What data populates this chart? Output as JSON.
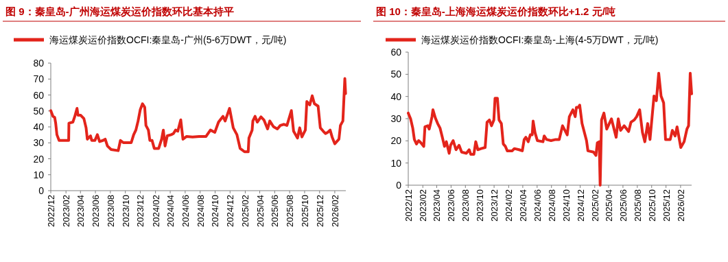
{
  "chart_data": [
    {
      "type": "line",
      "title": "图 9：秦皇岛-广州海运煤炭运价指数环比基本持平",
      "legend": "top",
      "ylim": [
        0,
        80
      ],
      "yticks": [
        0,
        10,
        20,
        30,
        40,
        50,
        60,
        70,
        80
      ],
      "xlim": [
        "2022-12-01",
        "2026-03-18"
      ],
      "xticks": [
        {
          "value": "2022-12-01",
          "label": "2022/12"
        },
        {
          "value": "2023-02-01",
          "label": "2023/02"
        },
        {
          "value": "2023-04-01",
          "label": "2023/04"
        },
        {
          "value": "2023-06-01",
          "label": "2023/06"
        },
        {
          "value": "2023-08-01",
          "label": "2023/08"
        },
        {
          "value": "2023-10-01",
          "label": "2023/10"
        },
        {
          "value": "2023-12-01",
          "label": "2023/12"
        },
        {
          "value": "2024-02-01",
          "label": "2024/02"
        },
        {
          "value": "2024-04-01",
          "label": "2024/04"
        },
        {
          "value": "2024-06-01",
          "label": "2024/06"
        },
        {
          "value": "2024-08-01",
          "label": "2024/08"
        },
        {
          "value": "2024-10-01",
          "label": "2024/10"
        },
        {
          "value": "2024-12-01",
          "label": "2024/12"
        },
        {
          "value": "2025-02-01",
          "label": "2025/02"
        },
        {
          "value": "2025-04-01",
          "label": "2025/04"
        },
        {
          "value": "2025-06-01",
          "label": "2025/06"
        },
        {
          "value": "2025-08-01",
          "label": "2025/08"
        },
        {
          "value": "2025-10-01",
          "label": "2025/10"
        },
        {
          "value": "2025-12-01",
          "label": "2025/12"
        },
        {
          "value": "2026-02-01",
          "label": "2026/02"
        }
      ],
      "series": [
        {
          "name": "海运煤炭运价指数OCFI:秦皇岛-广州(5-6万DWT，元/吨)",
          "color": "#e3241b",
          "x": [
            "2022-12-01",
            "2022-12-10",
            "2022-12-17",
            "2022-12-21",
            "2022-12-26",
            "2023-01-04",
            "2023-02-03",
            "2023-02-12",
            "2023-02-13",
            "2023-03-01",
            "2023-03-09",
            "2023-03-18",
            "2023-03-22",
            "2023-04-02",
            "2023-04-15",
            "2023-04-24",
            "2023-04-29",
            "2023-05-12",
            "2023-05-17",
            "2023-05-30",
            "2023-06-09",
            "2023-06-18",
            "2023-07-02",
            "2023-07-11",
            "2023-07-20",
            "2023-08-04",
            "2023-09-02",
            "2023-09-11",
            "2023-09-23",
            "2023-10-25",
            "2023-11-04",
            "2023-11-13",
            "2023-11-22",
            "2023-12-01",
            "2023-12-10",
            "2023-12-19",
            "2023-12-24",
            "2024-01-03",
            "2024-01-09",
            "2024-01-18",
            "2024-01-27",
            "2024-02-14",
            "2024-02-26",
            "2024-03-04",
            "2024-03-11",
            "2024-03-20",
            "2024-04-05",
            "2024-04-14",
            "2024-04-23",
            "2024-05-02",
            "2024-05-14",
            "2024-05-23",
            "2024-06-07",
            "2024-07-01",
            "2024-07-28",
            "2024-08-25",
            "2024-09-12",
            "2024-09-30",
            "2024-10-15",
            "2024-11-02",
            "2024-11-11",
            "2024-11-29",
            "2024-12-14",
            "2024-12-29",
            "2025-01-11",
            "2025-01-29",
            "2025-02-13",
            "2025-02-16",
            "2025-03-01",
            "2025-03-04",
            "2025-03-13",
            "2025-03-22",
            "2025-04-06",
            "2025-04-18",
            "2025-05-03",
            "2025-05-12",
            "2025-05-27",
            "2025-06-12",
            "2025-06-24",
            "2025-07-09",
            "2025-07-21",
            "2025-08-08",
            "2025-08-17",
            "2025-09-02",
            "2025-09-11",
            "2025-09-20",
            "2025-10-04",
            "2025-10-10",
            "2025-10-22",
            "2025-11-01",
            "2025-11-10",
            "2025-11-25",
            "2025-12-04",
            "2025-12-16",
            "2025-12-25",
            "2026-01-03",
            "2026-01-13",
            "2026-01-21",
            "2026-02-01",
            "2026-02-18",
            "2026-02-24",
            "2026-03-06",
            "2026-03-14",
            "2026-03-17"
          ],
          "values": [
            50.2,
            46.6,
            45.9,
            42.3,
            35.1,
            31.5,
            31.5,
            31.5,
            42.3,
            43,
            46.6,
            51.6,
            47.3,
            47.3,
            45.2,
            39.4,
            32.3,
            34.4,
            31.5,
            31.5,
            35.1,
            30.8,
            31.5,
            32.3,
            28,
            25.8,
            25.1,
            31.5,
            30.1,
            30.1,
            35.1,
            38,
            43.7,
            50.9,
            54.5,
            52.3,
            40.9,
            38,
            31.5,
            31.5,
            26.5,
            26.5,
            32.3,
            38,
            28,
            34.4,
            35.1,
            35.8,
            38,
            37.3,
            44.4,
            32.3,
            34,
            33.7,
            34,
            34,
            38,
            36.6,
            43,
            46.6,
            43.7,
            51.6,
            39.4,
            35.1,
            26.5,
            24.4,
            24.4,
            33,
            38,
            43.7,
            46.6,
            43,
            46.3,
            44.4,
            38.7,
            43.7,
            40.1,
            38.7,
            40.9,
            41.6,
            40.9,
            50.2,
            37.3,
            33,
            39.4,
            33.7,
            38,
            55.9,
            53.8,
            59.5,
            54.5,
            53,
            39.4,
            37.3,
            35.8,
            36.6,
            38,
            33.7,
            29.4,
            32.3,
            40.9,
            43.7,
            70.3,
            60.9
          ]
        }
      ]
    },
    {
      "type": "line",
      "title": "图 10：秦皇岛-上海海运煤炭运价指数环比+1.2 元/吨",
      "legend": "top",
      "ylim": [
        0,
        60
      ],
      "yticks": [
        0,
        10,
        20,
        30,
        40,
        50,
        60
      ],
      "xlim": [
        "2022-12-01",
        "2026-03-20"
      ],
      "xticks": [
        {
          "value": "2022-12-01",
          "label": "2022/12"
        },
        {
          "value": "2023-02-01",
          "label": "2023/02"
        },
        {
          "value": "2023-04-01",
          "label": "2023/04"
        },
        {
          "value": "2023-06-01",
          "label": "2023/06"
        },
        {
          "value": "2023-08-01",
          "label": "2023/08"
        },
        {
          "value": "2023-10-01",
          "label": "2023/10"
        },
        {
          "value": "2023-12-01",
          "label": "2023/12"
        },
        {
          "value": "2024-02-01",
          "label": "2024/02"
        },
        {
          "value": "2024-04-01",
          "label": "2024/04"
        },
        {
          "value": "2024-06-01",
          "label": "2024/06"
        },
        {
          "value": "2024-08-01",
          "label": "2024/08"
        },
        {
          "value": "2024-10-01",
          "label": "2024/10"
        },
        {
          "value": "2024-12-01",
          "label": "2024/12"
        },
        {
          "value": "2025-02-01",
          "label": "2025/02"
        },
        {
          "value": "2025-04-01",
          "label": "2025/04"
        },
        {
          "value": "2025-06-01",
          "label": "2025/06"
        },
        {
          "value": "2025-08-01",
          "label": "2025/08"
        },
        {
          "value": "2025-10-01",
          "label": "2025/10"
        },
        {
          "value": "2025-12-01",
          "label": "2025/12"
        },
        {
          "value": "2026-02-01",
          "label": "2026/02"
        }
      ],
      "series": [
        {
          "name": "海运煤炭运价指数OCFI:秦皇岛-上海(4-5万DWT，元/吨)",
          "color": "#e3241b",
          "x": [
            "2022-12-01",
            "2022-12-11",
            "2022-12-20",
            "2022-12-27",
            "2023-01-05",
            "2023-01-14",
            "2023-01-24",
            "2023-02-05",
            "2023-02-10",
            "2023-02-22",
            "2023-02-28",
            "2023-03-07",
            "2023-03-12",
            "2023-03-16",
            "2023-03-26",
            "2023-04-05",
            "2023-04-15",
            "2023-04-25",
            "2023-05-04",
            "2023-05-12",
            "2023-05-24",
            "2023-05-30",
            "2023-06-10",
            "2023-06-22",
            "2023-07-05",
            "2023-07-16",
            "2023-08-05",
            "2023-08-17",
            "2023-08-24",
            "2023-09-06",
            "2023-09-14",
            "2023-09-23",
            "2023-10-07",
            "2023-10-24",
            "2023-11-01",
            "2023-11-11",
            "2023-11-20",
            "2023-11-30",
            "2023-12-05",
            "2023-12-15",
            "2023-12-22",
            "2024-01-01",
            "2024-01-09",
            "2024-01-18",
            "2024-01-26",
            "2024-02-16",
            "2024-02-25",
            "2024-03-16",
            "2024-03-30",
            "2024-04-07",
            "2024-04-14",
            "2024-04-24",
            "2024-05-03",
            "2024-05-11",
            "2024-05-15",
            "2024-05-23",
            "2024-06-02",
            "2024-06-26",
            "2024-07-01",
            "2024-07-11",
            "2024-07-30",
            "2024-08-19",
            "2024-09-03",
            "2024-09-17",
            "2024-10-07",
            "2024-10-16",
            "2024-10-31",
            "2024-11-10",
            "2024-11-15",
            "2024-11-24",
            "2024-11-29",
            "2024-12-09",
            "2024-12-28",
            "2025-01-03",
            "2025-01-27",
            "2025-02-06",
            "2025-02-12",
            "2025-02-20",
            "2025-02-24",
            "2025-03-02",
            "2025-03-12",
            "2025-03-24",
            "2025-04-13",
            "2025-05-03",
            "2025-05-12",
            "2025-05-22",
            "2025-06-06",
            "2025-06-25",
            "2025-07-05",
            "2025-07-19",
            "2025-07-29",
            "2025-08-11",
            "2025-08-23",
            "2025-09-02",
            "2025-09-14",
            "2025-09-24",
            "2025-10-11",
            "2025-10-21",
            "2025-10-31",
            "2025-11-10",
            "2025-11-21",
            "2025-11-29",
            "2025-12-19",
            "2025-12-28",
            "2026-01-09",
            "2026-01-17",
            "2026-02-02",
            "2026-02-16",
            "2026-02-28",
            "2026-03-07",
            "2026-03-14",
            "2026-03-20"
          ],
          "values": [
            32.5,
            29.9,
            25.8,
            20.6,
            18.6,
            20.1,
            19.1,
            17.5,
            26.3,
            26.8,
            25.3,
            28.4,
            30.9,
            34,
            30.4,
            27.8,
            25.8,
            21.6,
            17.5,
            19.6,
            14.4,
            18,
            20.1,
            16,
            18,
            14.9,
            14.4,
            16,
            13.9,
            13.9,
            19.6,
            16,
            16.5,
            17,
            28.4,
            29.4,
            26.8,
            29.4,
            39.2,
            39.2,
            29.4,
            27.8,
            18.6,
            17.5,
            15.5,
            15.5,
            16.5,
            16,
            15.5,
            20.6,
            21.6,
            19.6,
            22.7,
            22.7,
            28.9,
            23.7,
            20.1,
            19.6,
            22.2,
            20.6,
            20.1,
            20.6,
            20.6,
            26.8,
            22.7,
            30.9,
            34,
            30.9,
            35.1,
            35.1,
            36.1,
            27.8,
            20.1,
            15.5,
            14.9,
            13.4,
            19.1,
            19.6,
            0,
            29.4,
            32.5,
            25.3,
            29.9,
            21.6,
            29.9,
            24.7,
            26.8,
            24.2,
            28.4,
            29.4,
            30.9,
            34,
            23.7,
            19.6,
            27.8,
            20.6,
            40.2,
            38.1,
            50.5,
            40.2,
            37.1,
            20.6,
            20.6,
            24.7,
            22.2,
            26.3,
            17,
            19.6,
            25.3,
            26.8,
            50.5,
            41.2
          ]
        }
      ]
    }
  ]
}
